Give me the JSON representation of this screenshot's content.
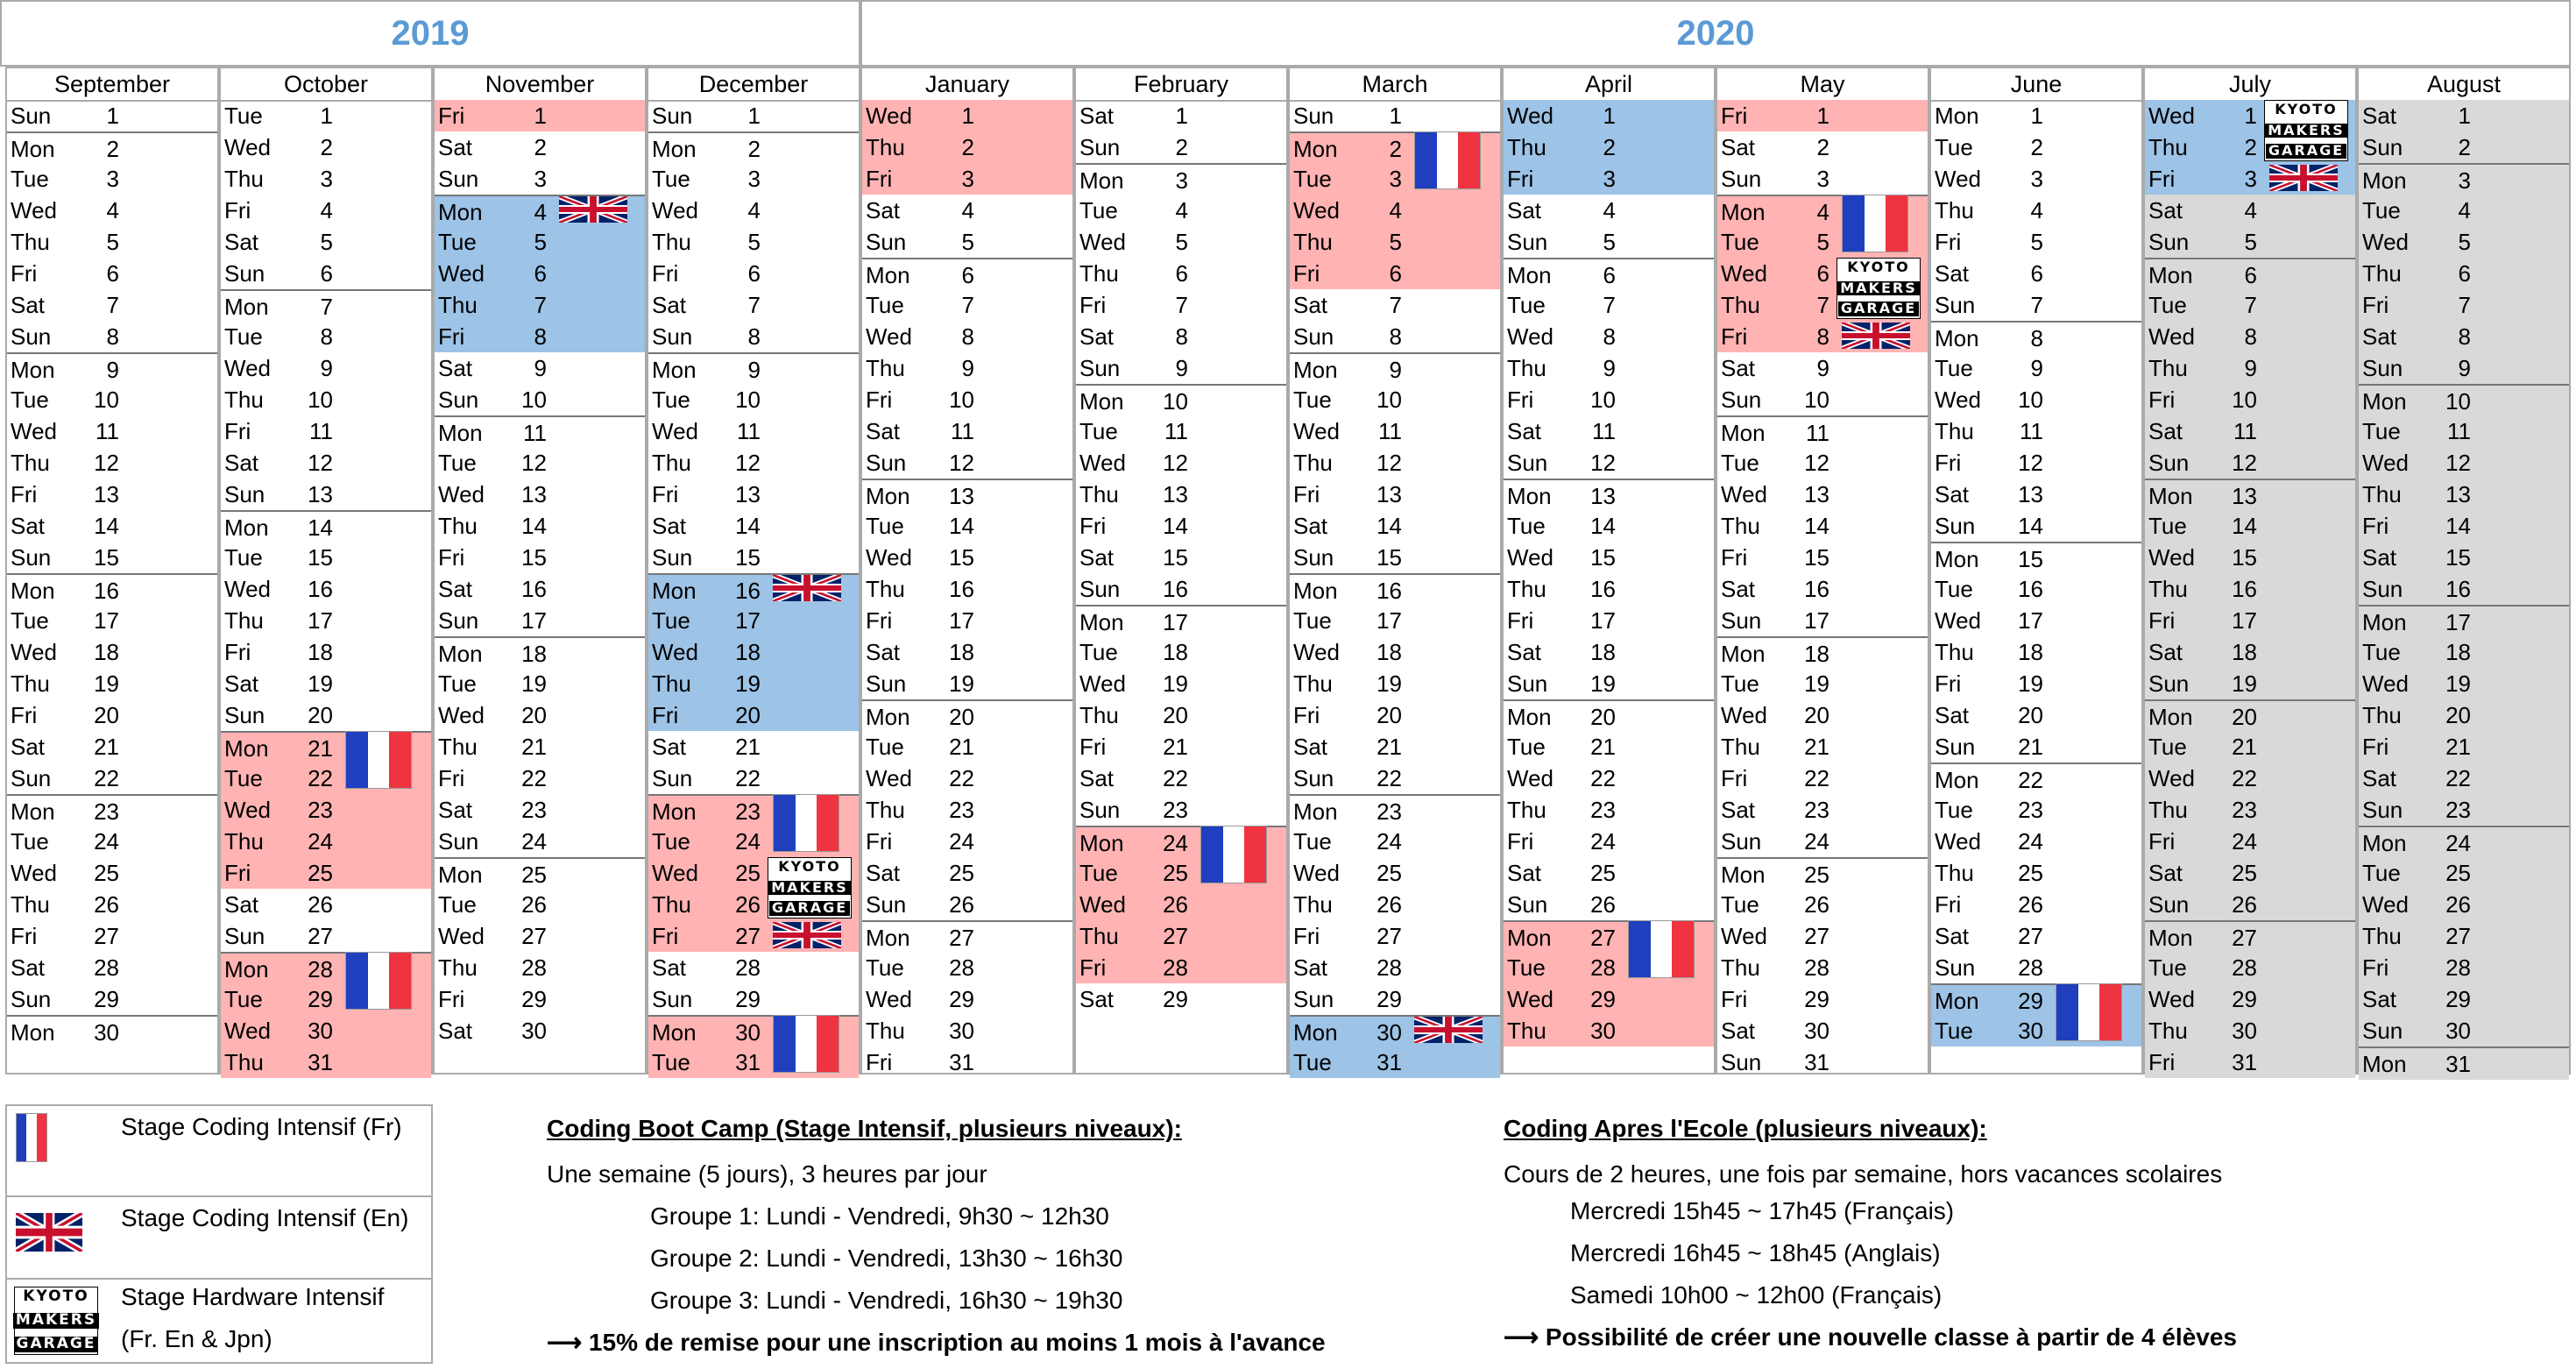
{
  "years": [
    {
      "label": "2019",
      "start": 0,
      "span": 4
    },
    {
      "label": "2020",
      "start": 4,
      "span": 8
    }
  ],
  "months": [
    {
      "name": "September",
      "start": "Sun",
      "days": 30,
      "fr": [],
      "en": [],
      "hol": []
    },
    {
      "name": "October",
      "start": "Tue",
      "days": 31,
      "fr": [
        21,
        22,
        23,
        24,
        25,
        28,
        29,
        30,
        31
      ],
      "en": [],
      "hol": []
    },
    {
      "name": "November",
      "start": "Fri",
      "days": 30,
      "fr": [
        1
      ],
      "en": [
        4,
        5,
        6,
        7,
        8
      ],
      "hol": []
    },
    {
      "name": "December",
      "start": "Sun",
      "days": 31,
      "fr": [
        23,
        24,
        25,
        26,
        27,
        30,
        31
      ],
      "en": [
        16,
        17,
        18,
        19,
        20
      ],
      "hol": []
    },
    {
      "name": "January",
      "start": "Wed",
      "days": 31,
      "fr": [
        1,
        2,
        3
      ],
      "en": [],
      "hol": []
    },
    {
      "name": "February",
      "start": "Sat",
      "days": 29,
      "fr": [
        24,
        25,
        26,
        27,
        28
      ],
      "en": [],
      "hol": []
    },
    {
      "name": "March",
      "start": "Sun",
      "days": 31,
      "fr": [
        2,
        3,
        4,
        5,
        6
      ],
      "en": [
        30,
        31
      ],
      "hol": []
    },
    {
      "name": "April",
      "start": "Wed",
      "days": 30,
      "fr": [
        27,
        28,
        29,
        30
      ],
      "en": [
        1,
        2,
        3
      ],
      "hol": []
    },
    {
      "name": "May",
      "start": "Fri",
      "days": 31,
      "fr": [
        1,
        4,
        5,
        6,
        7,
        8
      ],
      "en": [],
      "hol": []
    },
    {
      "name": "June",
      "start": "Mon",
      "days": 30,
      "fr": [],
      "en": [
        29,
        30
      ],
      "hol": []
    },
    {
      "name": "July",
      "start": "Wed",
      "days": 31,
      "fr": [],
      "en": [
        1,
        2,
        3
      ],
      "hol": [
        4,
        5,
        6,
        7,
        8,
        9,
        10,
        11,
        12,
        13,
        14,
        15,
        16,
        17,
        18,
        19,
        20,
        21,
        22,
        23,
        24,
        25,
        26,
        27,
        28,
        29,
        30,
        31
      ]
    },
    {
      "name": "August",
      "start": "Sat",
      "days": 31,
      "fr": [],
      "en": [],
      "hol": [
        1,
        2,
        3,
        4,
        5,
        6,
        7,
        8,
        9,
        10,
        11,
        12,
        13,
        14,
        15,
        16,
        17,
        18,
        19,
        20,
        21,
        22,
        23,
        24,
        25,
        26,
        27,
        28,
        29,
        30,
        31
      ]
    }
  ],
  "weekdays": [
    "Sun",
    "Mon",
    "Tue",
    "Wed",
    "Thu",
    "Fri",
    "Sat"
  ],
  "badges": [
    {
      "type": "uk-flag",
      "month": 2,
      "day": 4,
      "rows": 1
    },
    {
      "type": "fr-flag",
      "month": 1,
      "day": 21,
      "rows": 2
    },
    {
      "type": "fr-flag",
      "month": 1,
      "day": 28,
      "rows": 2
    },
    {
      "type": "uk-flag",
      "month": 3,
      "day": 16,
      "rows": 1
    },
    {
      "type": "fr-flag",
      "month": 3,
      "day": 23,
      "rows": 2
    },
    {
      "type": "kmg",
      "month": 3,
      "day": 25,
      "rows": 2
    },
    {
      "type": "uk-flag",
      "month": 3,
      "day": 27,
      "rows": 1
    },
    {
      "type": "fr-flag",
      "month": 3,
      "day": 30,
      "rows": 2
    },
    {
      "type": "fr-flag",
      "month": 5,
      "day": 24,
      "rows": 2
    },
    {
      "type": "fr-flag",
      "month": 6,
      "day": 2,
      "rows": 2
    },
    {
      "type": "uk-flag",
      "month": 6,
      "day": 30,
      "rows": 1
    },
    {
      "type": "fr-flag",
      "month": 7,
      "day": 27,
      "rows": 2
    },
    {
      "type": "fr-flag",
      "month": 8,
      "day": 4,
      "rows": 2
    },
    {
      "type": "kmg",
      "month": 8,
      "day": 6,
      "rows": 2
    },
    {
      "type": "uk-flag",
      "month": 8,
      "day": 8,
      "rows": 1
    },
    {
      "type": "fr-flag",
      "month": 9,
      "day": 29,
      "rows": 2
    },
    {
      "type": "kmg",
      "month": 10,
      "day": 1,
      "rows": 2
    },
    {
      "type": "uk-flag",
      "month": 10,
      "day": 3,
      "rows": 1
    }
  ],
  "kmg_text": [
    "KYOTO",
    "MAKERS",
    "GARAGE"
  ],
  "colors": {
    "fr_highlight": "#ffb3b3",
    "en_highlight": "#9dc3e6",
    "holiday": "#d9d9d9",
    "year_text": "#5b9bd5",
    "flag_blue": "#1f3fbf",
    "flag_red": "#ef3340",
    "uk_blue": "#012169",
    "uk_red": "#c8102e"
  },
  "legend": [
    {
      "icon": "fr-flag",
      "label": "Stage Coding Intensif (Fr)"
    },
    {
      "icon": "uk-flag",
      "label": "Stage Coding Intensif (En)"
    },
    {
      "icon": "kmg",
      "label": "Stage Hardware Intensif",
      "sublabel": "(Fr. En & Jpn)"
    }
  ],
  "bootcamp": {
    "title": "Coding Boot Camp (Stage Intensif, plusieurs niveaux):",
    "line1": "Une semaine (5 jours), 3 heures par jour",
    "groups": [
      "Groupe 1: Lundi - Vendredi, 9h30 ~ 12h30",
      "Groupe 2: Lundi - Vendredi, 13h30 ~ 16h30",
      "Groupe 3: Lundi - Vendredi, 16h30 ~ 19h30"
    ],
    "arrow": "⟶",
    "note": "15% de remise pour une inscription au moins 1 mois à l'avance"
  },
  "afterschool": {
    "title": "Coding Apres l'Ecole (plusieurs niveaux):",
    "line1": "Cours de 2 heures, une fois par semaine, hors vacances scolaires",
    "slots": [
      "Mercredi 15h45 ~ 17h45 (Français)",
      "Mercredi 16h45 ~ 18h45 (Anglais)",
      "Samedi 10h00 ~ 12h00 (Français)"
    ],
    "arrow": "⟶",
    "note": "Possibilité de créer une nouvelle classe à partir de 4 élèves"
  }
}
